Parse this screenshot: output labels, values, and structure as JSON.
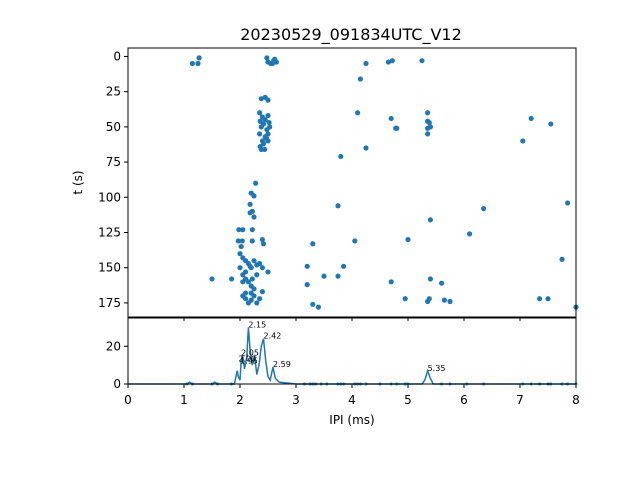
{
  "figure": {
    "title": "20230529_091834UTC_V12",
    "accent_color": "#1f77b4"
  },
  "chart_data": [
    {
      "type": "scatter",
      "title": "20230529_091834UTC_V12",
      "xlabel": "",
      "ylabel": "t (s)",
      "xlim": [
        0,
        8
      ],
      "ylim": [
        185,
        -6
      ],
      "y_inverted": true,
      "y_ticks": [
        0,
        25,
        50,
        75,
        100,
        125,
        150,
        175
      ],
      "x_ticks_labeled": false,
      "grid": false,
      "legend": "none",
      "series": [
        {
          "color": "#1f77b4",
          "points": [
            [
              1.15,
              5
            ],
            [
              1.25,
              5
            ],
            [
              1.27,
              1
            ],
            [
              2.48,
              1
            ],
            [
              2.5,
              4
            ],
            [
              2.55,
              5
            ],
            [
              2.6,
              3
            ],
            [
              2.62,
              2
            ],
            [
              2.65,
              4
            ],
            [
              2.58,
              5
            ],
            [
              4.25,
              5
            ],
            [
              4.65,
              4
            ],
            [
              4.72,
              3
            ],
            [
              5.25,
              3
            ],
            [
              4.15,
              16
            ],
            [
              2.38,
              30
            ],
            [
              2.45,
              29
            ],
            [
              2.5,
              31
            ],
            [
              2.35,
              40
            ],
            [
              2.4,
              43
            ],
            [
              2.5,
              42
            ],
            [
              2.45,
              45
            ],
            [
              2.42,
              48
            ],
            [
              2.52,
              47
            ],
            [
              2.38,
              50
            ],
            [
              2.48,
              52
            ],
            [
              2.35,
              55
            ],
            [
              2.45,
              57
            ],
            [
              2.5,
              55
            ],
            [
              2.4,
              60
            ],
            [
              2.42,
              62
            ],
            [
              2.36,
              64
            ],
            [
              2.38,
              66
            ],
            [
              2.44,
              66
            ],
            [
              2.47,
              58
            ],
            [
              2.53,
              50
            ],
            [
              2.36,
              46
            ],
            [
              2.5,
              60
            ],
            [
              4.1,
              40
            ],
            [
              4.7,
              44
            ],
            [
              4.8,
              51
            ],
            [
              4.78,
              51
            ],
            [
              5.35,
              40
            ],
            [
              5.35,
              46
            ],
            [
              5.38,
              47
            ],
            [
              5.35,
              51
            ],
            [
              5.4,
              50
            ],
            [
              5.35,
              55
            ],
            [
              7.2,
              44
            ],
            [
              7.55,
              48
            ],
            [
              7.05,
              60
            ],
            [
              4.25,
              65
            ],
            [
              3.8,
              71
            ],
            [
              2.28,
              90
            ],
            [
              2.2,
              97
            ],
            [
              2.25,
              99
            ],
            [
              2.18,
              105
            ],
            [
              2.22,
              110
            ],
            [
              2.18,
              111
            ],
            [
              2.25,
              114
            ],
            [
              3.75,
              106
            ],
            [
              5.4,
              116
            ],
            [
              6.35,
              108
            ],
            [
              7.85,
              104
            ],
            [
              1.98,
              123
            ],
            [
              2.05,
              123
            ],
            [
              2.22,
              123
            ],
            [
              2.04,
              131
            ],
            [
              1.97,
              131
            ],
            [
              2.02,
              135
            ],
            [
              2.22,
              131
            ],
            [
              2.4,
              130
            ],
            [
              2.42,
              133
            ],
            [
              3.3,
              133
            ],
            [
              4.05,
              131
            ],
            [
              5.0,
              130
            ],
            [
              6.1,
              126
            ],
            [
              2.0,
              140
            ],
            [
              2.05,
              143
            ],
            [
              2.1,
              145
            ],
            [
              2.15,
              147
            ],
            [
              2.2,
              150
            ],
            [
              2.25,
              145
            ],
            [
              2.3,
              148
            ],
            [
              2.0,
              150
            ],
            [
              2.05,
              155
            ],
            [
              2.1,
              158
            ],
            [
              2.15,
              160
            ],
            [
              2.2,
              163
            ],
            [
              2.25,
              165
            ],
            [
              2.1,
              153
            ],
            [
              2.3,
              155
            ],
            [
              2.22,
              158
            ],
            [
              2.18,
              149
            ],
            [
              2.35,
              147
            ],
            [
              2.4,
              150
            ],
            [
              2.05,
              160
            ],
            [
              1.5,
              158
            ],
            [
              1.85,
              158
            ],
            [
              2.5,
              153
            ],
            [
              3.2,
              149
            ],
            [
              3.5,
              156
            ],
            [
              3.75,
              156
            ],
            [
              3.85,
              149
            ],
            [
              4.7,
              160
            ],
            [
              5.4,
              158
            ],
            [
              5.6,
              161
            ],
            [
              7.75,
              144
            ],
            [
              3.2,
              162
            ],
            [
              2.05,
              170
            ],
            [
              2.1,
              172
            ],
            [
              2.15,
              175
            ],
            [
              2.2,
              173
            ],
            [
              2.25,
              170
            ],
            [
              2.3,
              175
            ],
            [
              2.1,
              168
            ],
            [
              2.2,
              168
            ],
            [
              2.35,
              172
            ],
            [
              2.4,
              167
            ],
            [
              3.3,
              176
            ],
            [
              3.4,
              178
            ],
            [
              4.95,
              172
            ],
            [
              5.35,
              174
            ],
            [
              5.38,
              172
            ],
            [
              5.65,
              173
            ],
            [
              5.75,
              174
            ],
            [
              7.35,
              172
            ],
            [
              7.5,
              172
            ],
            [
              8.0,
              178
            ]
          ]
        }
      ]
    },
    {
      "type": "line",
      "title": "",
      "xlabel": "IPI (ms)",
      "ylabel": "",
      "xlim": [
        0,
        8
      ],
      "ylim": [
        0,
        35
      ],
      "x_ticks": [
        0,
        1,
        2,
        3,
        4,
        5,
        6,
        7,
        8
      ],
      "y_ticks": [
        0,
        20
      ],
      "grid": false,
      "legend": "none",
      "series": [
        {
          "color": "#1f77b4",
          "x": [
            0,
            1.05,
            1.1,
            1.15,
            1.5,
            1.55,
            1.6,
            1.9,
            1.95,
            1.97,
            2.0,
            2.02,
            2.05,
            2.08,
            2.12,
            2.15,
            2.18,
            2.22,
            2.26,
            2.3,
            2.34,
            2.38,
            2.42,
            2.46,
            2.5,
            2.54,
            2.59,
            2.63,
            2.7,
            3.0,
            5.25,
            5.3,
            5.35,
            5.4,
            5.45,
            8.0
          ],
          "y": [
            0,
            0,
            1,
            0,
            0,
            1,
            0,
            0,
            7,
            4,
            2,
            12,
            15,
            8,
            14,
            30,
            18,
            10,
            15,
            5,
            10,
            20,
            24,
            12,
            4,
            2,
            9,
            3,
            1,
            0,
            0,
            2,
            7,
            3,
            0,
            0
          ]
        }
      ],
      "markers": {
        "color": "#1f77b4",
        "x": [
          1.05,
          1.15,
          1.5,
          1.6,
          1.85,
          3.15,
          3.25,
          3.3,
          3.35,
          3.45,
          3.55,
          3.75,
          3.8,
          3.85,
          4.05,
          4.1,
          4.15,
          4.25,
          4.5,
          4.7,
          4.8,
          4.95,
          5.0,
          5.6,
          5.75,
          6.05,
          6.35,
          7.05,
          7.2,
          7.35,
          7.5,
          7.55,
          7.75,
          7.85,
          8.0
        ],
        "y": 0
      },
      "annotations": [
        {
          "x": 1.97,
          "y": 12,
          "label": "2.00"
        },
        {
          "x": 2.02,
          "y": 15,
          "label": "2.05"
        },
        {
          "x": 2.0,
          "y": 11,
          "label": "1.95"
        },
        {
          "x": 2.15,
          "y": 30,
          "label": "2.15"
        },
        {
          "x": 2.42,
          "y": 24,
          "label": "2.42"
        },
        {
          "x": 2.59,
          "y": 9,
          "label": "2.59"
        },
        {
          "x": 5.35,
          "y": 7,
          "label": "5.35"
        }
      ]
    }
  ]
}
